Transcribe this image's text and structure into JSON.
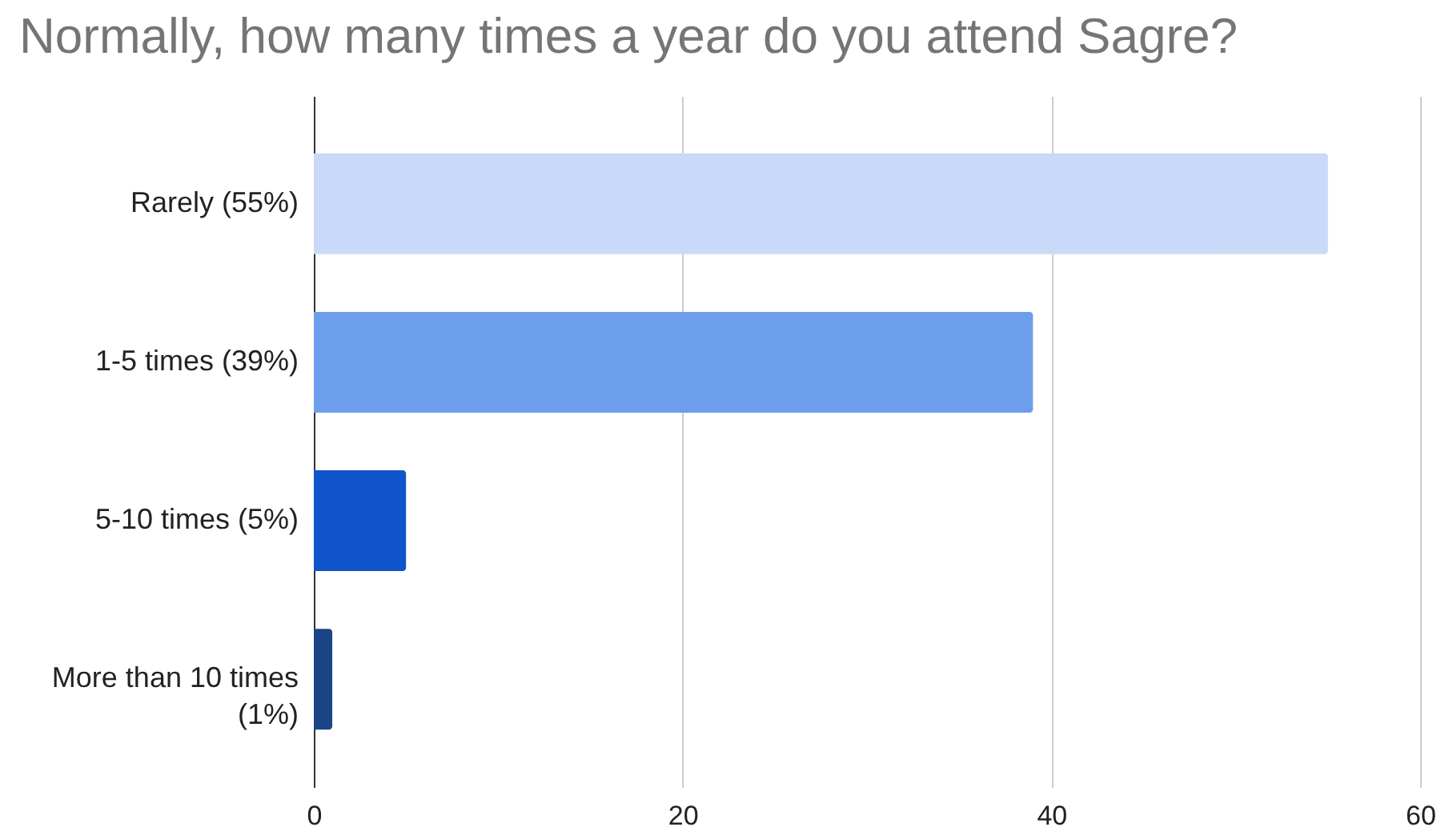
{
  "chart_data": {
    "type": "bar",
    "orientation": "horizontal",
    "title": "Normally, how many times a year do you attend Sagre?",
    "categories": [
      "Rarely (55%)",
      "1-5 times (39%)",
      "5-10 times (5%)",
      "More than 10 times (1%)"
    ],
    "values": [
      55,
      39,
      5,
      1
    ],
    "colors": [
      "#c9daf8",
      "#6d9eeb",
      "#1155cc",
      "#1c4587"
    ],
    "xlim": [
      0,
      60
    ],
    "xticks": [
      0,
      20,
      40,
      60
    ],
    "grid": "x"
  }
}
